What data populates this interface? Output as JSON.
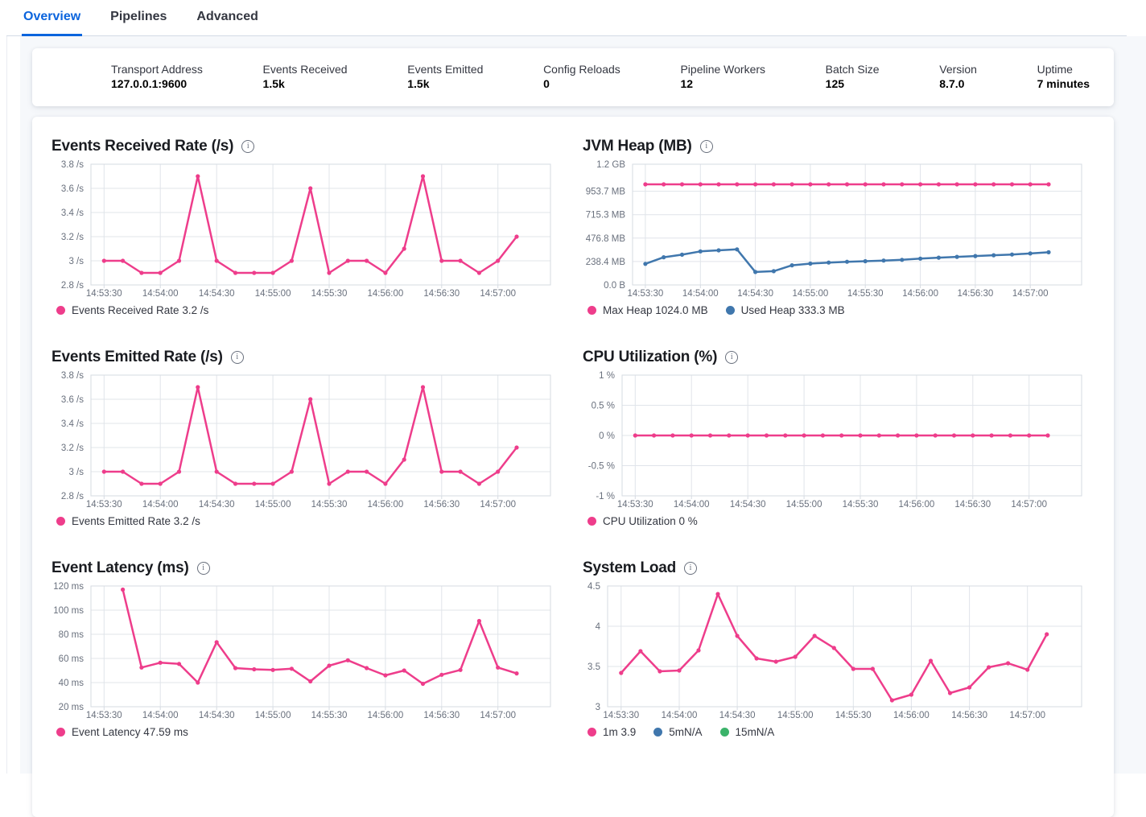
{
  "tabs": {
    "items": [
      {
        "label": "Overview",
        "active": true
      },
      {
        "label": "Pipelines",
        "active": false
      },
      {
        "label": "Advanced",
        "active": false
      }
    ]
  },
  "summary": {
    "items": [
      {
        "label": "Transport Address",
        "value": "127.0.0.1:9600"
      },
      {
        "label": "Events Received",
        "value": "1.5k"
      },
      {
        "label": "Events Emitted",
        "value": "1.5k"
      },
      {
        "label": "Config Reloads",
        "value": "0"
      },
      {
        "label": "Pipeline Workers",
        "value": "12"
      },
      {
        "label": "Batch Size",
        "value": "125"
      },
      {
        "label": "Version",
        "value": "8.7.0"
      },
      {
        "label": "Uptime",
        "value": "7 minutes"
      }
    ]
  },
  "colors": {
    "tab_active": "#0b64dd",
    "series_pink": "#ee3d8b",
    "series_blue": "#4077ad",
    "series_green": "#3bb36a",
    "grid": "#e0e4ea",
    "axis_text": "#69707d"
  },
  "chart_data": [
    {
      "type": "line",
      "title": "Events Received Rate (/s)",
      "x_tick_labels": [
        "14:53:30",
        "14:54:00",
        "14:54:30",
        "14:55:00",
        "14:55:30",
        "14:56:00",
        "14:56:30",
        "14:57:00"
      ],
      "x_start": 0,
      "x_step": 10,
      "x_domain": [
        -7,
        238
      ],
      "ylim": [
        2.8,
        3.8
      ],
      "y_ticks": [
        {
          "v": 2.8,
          "label": "2.8 /s"
        },
        {
          "v": 3.0,
          "label": "3 /s"
        },
        {
          "v": 3.2,
          "label": "3.2 /s"
        },
        {
          "v": 3.4,
          "label": "3.4 /s"
        },
        {
          "v": 3.6,
          "label": "3.6 /s"
        },
        {
          "v": 3.8,
          "label": "3.8 /s"
        }
      ],
      "series": [
        {
          "name": "Events Received Rate",
          "color": "#ee3d8b",
          "values": [
            3.0,
            3.0,
            2.9,
            2.9,
            3.0,
            3.7,
            3.0,
            2.9,
            2.9,
            2.9,
            3.0,
            3.6,
            2.9,
            3.0,
            3.0,
            2.9,
            3.1,
            3.7,
            3.0,
            3.0,
            2.9,
            3.0,
            3.2
          ]
        }
      ],
      "legend": [
        {
          "label": "Events Received Rate 3.2 /s",
          "color": "#ee3d8b"
        }
      ]
    },
    {
      "type": "line",
      "title": "JVM Heap (MB)",
      "x_tick_labels": [
        "14:53:30",
        "14:54:00",
        "14:54:30",
        "14:55:00",
        "14:55:30",
        "14:56:00",
        "14:56:30",
        "14:57:00"
      ],
      "x_start": 0,
      "x_step": 10,
      "x_domain": [
        -7,
        238
      ],
      "ylim": [
        0,
        1228.8
      ],
      "y_ticks": [
        {
          "v": 0,
          "label": "0.0 B"
        },
        {
          "v": 238.4,
          "label": "238.4 MB"
        },
        {
          "v": 476.8,
          "label": "476.8 MB"
        },
        {
          "v": 715.3,
          "label": "715.3 MB"
        },
        {
          "v": 953.7,
          "label": "953.7 MB"
        },
        {
          "v": 1228.8,
          "label": "1.2 GB"
        }
      ],
      "series": [
        {
          "name": "Max Heap",
          "color": "#ee3d8b",
          "values": [
            1024,
            1024,
            1024,
            1024,
            1024,
            1024,
            1024,
            1024,
            1024,
            1024,
            1024,
            1024,
            1024,
            1024,
            1024,
            1024,
            1024,
            1024,
            1024,
            1024,
            1024,
            1024,
            1024
          ]
        },
        {
          "name": "Used Heap",
          "color": "#4077ad",
          "values": [
            215,
            282,
            308,
            342,
            352,
            362,
            132,
            140,
            200,
            217,
            228,
            236,
            242,
            248,
            256,
            268,
            278,
            286,
            294,
            302,
            310,
            320,
            333
          ]
        }
      ],
      "legend": [
        {
          "label": "Max Heap 1024.0 MB",
          "color": "#ee3d8b"
        },
        {
          "label": "Used Heap 333.3 MB",
          "color": "#4077ad"
        }
      ]
    },
    {
      "type": "line",
      "title": "Events Emitted Rate (/s)",
      "x_tick_labels": [
        "14:53:30",
        "14:54:00",
        "14:54:30",
        "14:55:00",
        "14:55:30",
        "14:56:00",
        "14:56:30",
        "14:57:00"
      ],
      "x_start": 0,
      "x_step": 10,
      "x_domain": [
        -7,
        238
      ],
      "ylim": [
        2.8,
        3.8
      ],
      "y_ticks": [
        {
          "v": 2.8,
          "label": "2.8 /s"
        },
        {
          "v": 3.0,
          "label": "3 /s"
        },
        {
          "v": 3.2,
          "label": "3.2 /s"
        },
        {
          "v": 3.4,
          "label": "3.4 /s"
        },
        {
          "v": 3.6,
          "label": "3.6 /s"
        },
        {
          "v": 3.8,
          "label": "3.8 /s"
        }
      ],
      "series": [
        {
          "name": "Events Emitted Rate",
          "color": "#ee3d8b",
          "values": [
            3.0,
            3.0,
            2.9,
            2.9,
            3.0,
            3.7,
            3.0,
            2.9,
            2.9,
            2.9,
            3.0,
            3.6,
            2.9,
            3.0,
            3.0,
            2.9,
            3.1,
            3.7,
            3.0,
            3.0,
            2.9,
            3.0,
            3.2
          ]
        }
      ],
      "legend": [
        {
          "label": "Events Emitted Rate 3.2 /s",
          "color": "#ee3d8b"
        }
      ]
    },
    {
      "type": "line",
      "title": "CPU Utilization (%)",
      "x_tick_labels": [
        "14:53:30",
        "14:54:00",
        "14:54:30",
        "14:55:00",
        "14:55:30",
        "14:56:00",
        "14:56:30",
        "14:57:00"
      ],
      "x_start": 0,
      "x_step": 10,
      "x_domain": [
        -7,
        238
      ],
      "ylim": [
        -1,
        1
      ],
      "y_ticks": [
        {
          "v": -1,
          "label": "-1 %"
        },
        {
          "v": -0.5,
          "label": "-0.5 %"
        },
        {
          "v": 0,
          "label": "0 %"
        },
        {
          "v": 0.5,
          "label": "0.5 %"
        },
        {
          "v": 1,
          "label": "1 %"
        }
      ],
      "series": [
        {
          "name": "CPU Utilization",
          "color": "#ee3d8b",
          "values": [
            0,
            0,
            0,
            0,
            0,
            0,
            0,
            0,
            0,
            0,
            0,
            0,
            0,
            0,
            0,
            0,
            0,
            0,
            0,
            0,
            0,
            0,
            0
          ]
        }
      ],
      "legend": [
        {
          "label": "CPU Utilization 0 %",
          "color": "#ee3d8b"
        }
      ]
    },
    {
      "type": "line",
      "title": "Event Latency (ms)",
      "x_tick_labels": [
        "14:53:30",
        "14:54:00",
        "14:54:30",
        "14:55:00",
        "14:55:30",
        "14:56:00",
        "14:56:30",
        "14:57:00"
      ],
      "x_start": 10,
      "x_step": 10,
      "x_domain": [
        -7,
        238
      ],
      "ylim": [
        20,
        120
      ],
      "y_ticks": [
        {
          "v": 20,
          "label": "20 ms"
        },
        {
          "v": 40,
          "label": "40 ms"
        },
        {
          "v": 60,
          "label": "60 ms"
        },
        {
          "v": 80,
          "label": "80 ms"
        },
        {
          "v": 100,
          "label": "100 ms"
        },
        {
          "v": 120,
          "label": "120 ms"
        }
      ],
      "series": [
        {
          "name": "Event Latency",
          "color": "#ee3d8b",
          "values": [
            117,
            52.5,
            56.5,
            55.5,
            40,
            73.5,
            52,
            51,
            50.5,
            51.5,
            41,
            54,
            58.5,
            52,
            46,
            50,
            39,
            46.5,
            50.5,
            91,
            52.5,
            47.59
          ]
        }
      ],
      "legend": [
        {
          "label": "Event Latency 47.59 ms",
          "color": "#ee3d8b"
        }
      ]
    },
    {
      "type": "line",
      "title": "System Load",
      "x_tick_labels": [
        "14:53:30",
        "14:54:00",
        "14:54:30",
        "14:55:00",
        "14:55:30",
        "14:56:00",
        "14:56:30",
        "14:57:00"
      ],
      "x_start": 0,
      "x_step": 10,
      "x_domain": [
        -7,
        238
      ],
      "ylim": [
        3,
        4.5
      ],
      "y_ticks": [
        {
          "v": 3,
          "label": "3"
        },
        {
          "v": 3.5,
          "label": "3.5"
        },
        {
          "v": 4,
          "label": "4"
        },
        {
          "v": 4.5,
          "label": "4.5"
        }
      ],
      "series": [
        {
          "name": "1m",
          "color": "#ee3d8b",
          "values": [
            3.42,
            3.69,
            3.44,
            3.45,
            3.7,
            4.4,
            3.88,
            3.6,
            3.56,
            3.62,
            3.88,
            3.73,
            3.47,
            3.47,
            3.08,
            3.15,
            3.57,
            3.17,
            3.24,
            3.49,
            3.54,
            3.46,
            3.9
          ]
        }
      ],
      "legend": [
        {
          "label": "1m 3.9",
          "color": "#ee3d8b"
        },
        {
          "label": "5mN/A",
          "color": "#4077ad"
        },
        {
          "label": "15mN/A",
          "color": "#3bb36a"
        }
      ]
    }
  ]
}
